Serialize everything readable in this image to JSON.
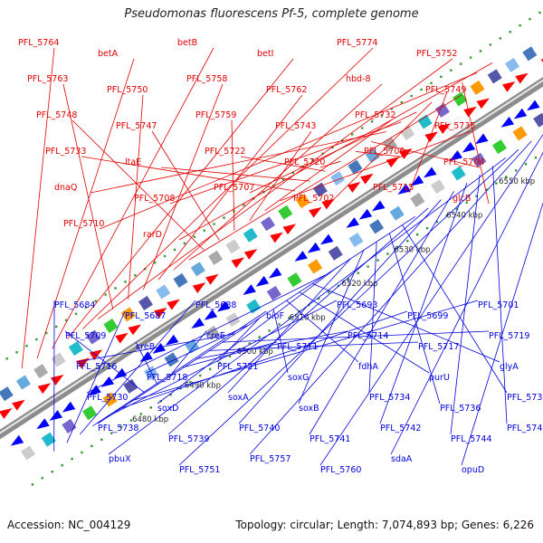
{
  "title": "Pseudomonas fluorescens Pf-5, complete genome",
  "footer": {
    "accession": "Accession: NC_004129",
    "topology": "Topology: circular; Length: 7,074,893 bp; Genes: 6,226"
  },
  "colors": {
    "forward_label": "#e00000",
    "reverse_label": "#0000dd",
    "forward_gene": "#ff0000",
    "reverse_gene": "#0000ff",
    "backbone": "#8c8c8c",
    "ticks": "#339933"
  },
  "kbp_labels": [
    "6480 kbp",
    "6490 kbp",
    "6500 kbp",
    "6510 kbp",
    "6520 kbp",
    "6530 kbp",
    "6540 kbp",
    "6550 kbp",
    "6560 kbp",
    "6570 kbp"
  ],
  "forward_labels": [
    "PFL_5764",
    "betA",
    "betB",
    "betI",
    "PFL_5774",
    "PFL_5752",
    "PFL_5763",
    "PFL_5750",
    "PFL_5758",
    "PFL_5762",
    "hbd-8",
    "PFL_5749",
    "PFL_5748",
    "PFL_5747",
    "PFL_5759",
    "PFL_5743",
    "PFL_5732",
    "PFL_5735",
    "PFL_5733",
    "ltaE",
    "PFL_5722",
    "PFL_5720",
    "PFL_5706",
    "PFL_5704",
    "dnaQ",
    "PFL_5708",
    "PFL_5707",
    "PFL_5702",
    "PFL_5715",
    "glcB",
    "PFL_5710",
    "rarD"
  ],
  "reverse_labels": [
    "PFL_5684",
    "PFL_5687",
    "PFL_5688",
    "bioF",
    "PFL_5693",
    "PFL_5699",
    "PFL_5701",
    "PFL_5709",
    "creB",
    "creE",
    "PFL_5711",
    "PFL_5714",
    "PFL_5717",
    "PFL_5719",
    "PFL_5716",
    "PFL_5718",
    "PFL_5721",
    "soxG",
    "fdhA",
    "purU",
    "glyA",
    "PFL_5730",
    "soxD",
    "soxA",
    "soxB",
    "PFL_5734",
    "PFL_5736",
    "PFL_5737",
    "PFL_5738",
    "PFL_5739",
    "PFL_5740",
    "PFL_5741",
    "PFL_5742",
    "PFL_5744",
    "PFL_5745",
    "pbuX",
    "PFL_5751",
    "PFL_5757",
    "PFL_5760",
    "sdaA",
    "opuD"
  ]
}
